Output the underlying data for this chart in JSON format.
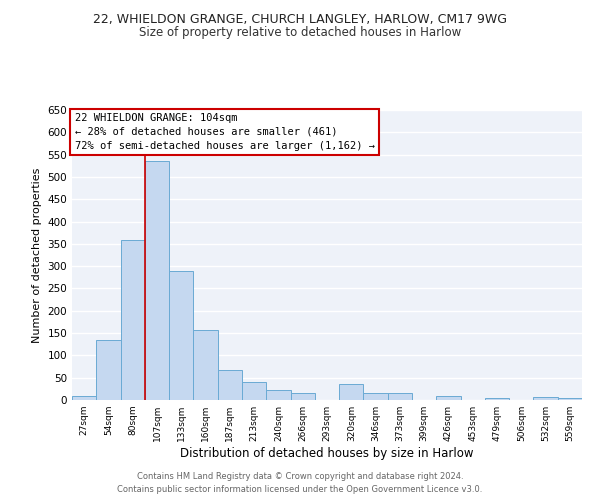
{
  "title": "22, WHIELDON GRANGE, CHURCH LANGLEY, HARLOW, CM17 9WG",
  "subtitle": "Size of property relative to detached houses in Harlow",
  "xlabel": "Distribution of detached houses by size in Harlow",
  "ylabel": "Number of detached properties",
  "bar_labels": [
    "27sqm",
    "54sqm",
    "80sqm",
    "107sqm",
    "133sqm",
    "160sqm",
    "187sqm",
    "213sqm",
    "240sqm",
    "266sqm",
    "293sqm",
    "320sqm",
    "346sqm",
    "373sqm",
    "399sqm",
    "426sqm",
    "453sqm",
    "479sqm",
    "506sqm",
    "532sqm",
    "559sqm"
  ],
  "bar_heights": [
    10,
    135,
    358,
    535,
    290,
    157,
    67,
    40,
    22,
    15,
    0,
    35,
    15,
    15,
    0,
    10,
    0,
    5,
    0,
    7,
    5
  ],
  "bar_color": "#c5d8f0",
  "bar_edge_color": "#6aaad4",
  "ylim": [
    0,
    650
  ],
  "yticks": [
    0,
    50,
    100,
    150,
    200,
    250,
    300,
    350,
    400,
    450,
    500,
    550,
    600,
    650
  ],
  "red_line_index": 3,
  "annotation_title": "22 WHIELDON GRANGE: 104sqm",
  "annotation_line1": "← 28% of detached houses are smaller (461)",
  "annotation_line2": "72% of semi-detached houses are larger (1,162) →",
  "annotation_box_color": "#ffffff",
  "annotation_box_edge": "#cc0000",
  "footer_line1": "Contains HM Land Registry data © Crown copyright and database right 2024.",
  "footer_line2": "Contains public sector information licensed under the Open Government Licence v3.0.",
  "background_color": "#eef2f9",
  "grid_color": "#ffffff",
  "title_fontsize": 9,
  "subtitle_fontsize": 8.5,
  "ylabel_fontsize": 8,
  "xlabel_fontsize": 8.5
}
